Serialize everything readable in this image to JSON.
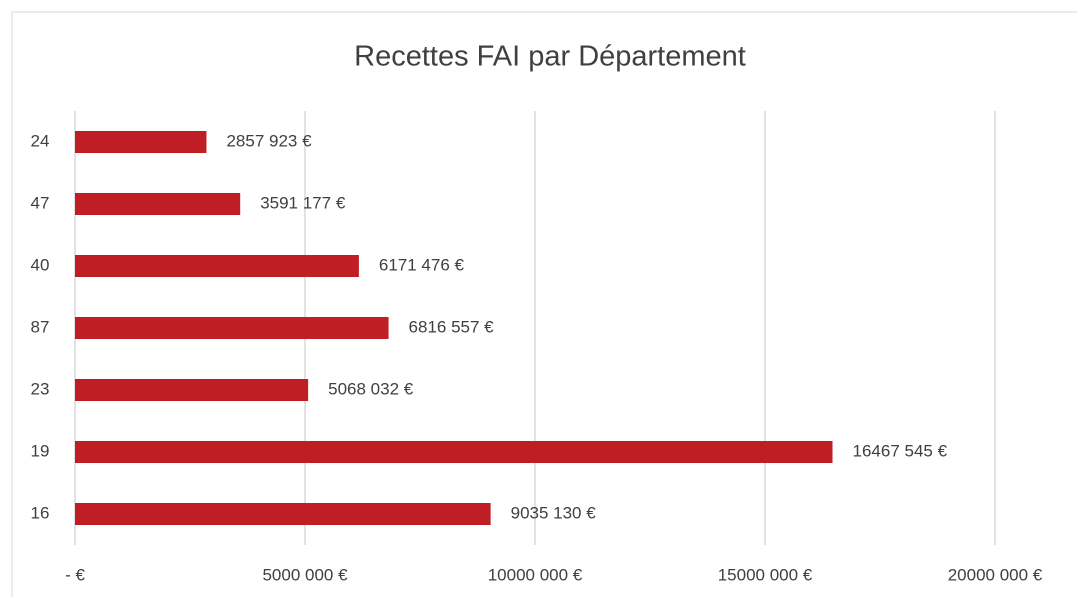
{
  "chart_data": {
    "type": "hbar",
    "title": "Recettes FAI par Département",
    "categories": [
      "24",
      "47",
      "40",
      "87",
      "23",
      "19",
      "16"
    ],
    "values": [
      2857923,
      3591177,
      6171476,
      6816557,
      5068032,
      16467545,
      9035130
    ],
    "value_labels": [
      "2857 923 €",
      "3591 177 €",
      "6171 476 €",
      "6816 557 €",
      "5068 032 €",
      "16467 545 €",
      "9035 130 €"
    ],
    "color": "#be1e24",
    "xlim": [
      0,
      20000000
    ],
    "xticks": [
      {
        "value": 0,
        "label": "-  €"
      },
      {
        "value": 5000000,
        "label": "5000 000 €"
      },
      {
        "value": 10000000,
        "label": "10000 000 €"
      },
      {
        "value": 15000000,
        "label": "15000 000 €"
      },
      {
        "value": 20000000,
        "label": "20000 000 €"
      }
    ],
    "grid": true
  }
}
